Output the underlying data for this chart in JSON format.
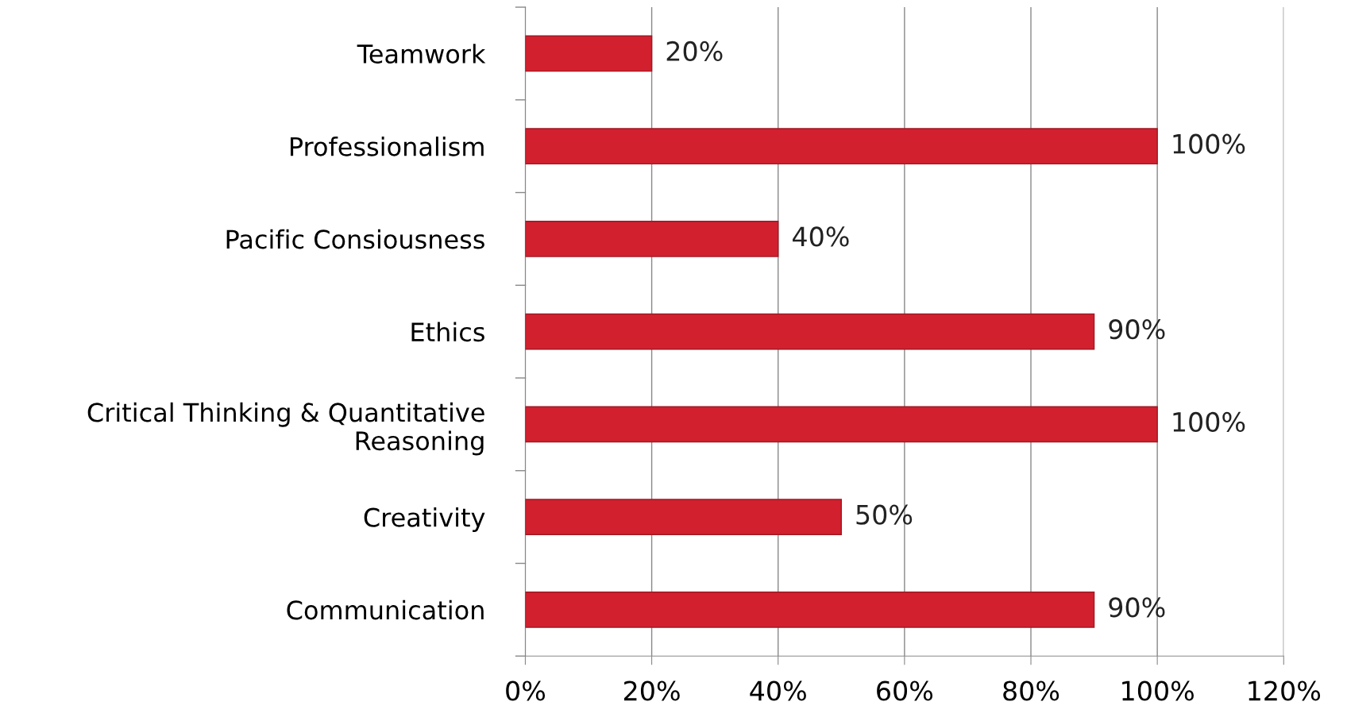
{
  "chart_data": {
    "type": "bar",
    "orientation": "horizontal",
    "categories": [
      "Teamwork",
      "Professionalism",
      "Pacific Consiousness",
      "Ethics",
      "Critical Thinking & Quantitative\nReasoning",
      "Creativity",
      "Communication"
    ],
    "values": [
      20,
      100,
      40,
      90,
      100,
      50,
      90
    ],
    "value_labels": [
      "20%",
      "100%",
      "40%",
      "90%",
      "100%",
      "50%",
      "90%"
    ],
    "color": "#d2202f",
    "xlim": [
      0,
      120
    ],
    "xticks": [
      {
        "value": 0,
        "label": "0%"
      },
      {
        "value": 20,
        "label": "20%"
      },
      {
        "value": 40,
        "label": "40%"
      },
      {
        "value": 60,
        "label": "60%"
      },
      {
        "value": 80,
        "label": "80%"
      },
      {
        "value": 100,
        "label": "100%"
      },
      {
        "value": 120,
        "label": "120%"
      }
    ],
    "grid": "x"
  }
}
